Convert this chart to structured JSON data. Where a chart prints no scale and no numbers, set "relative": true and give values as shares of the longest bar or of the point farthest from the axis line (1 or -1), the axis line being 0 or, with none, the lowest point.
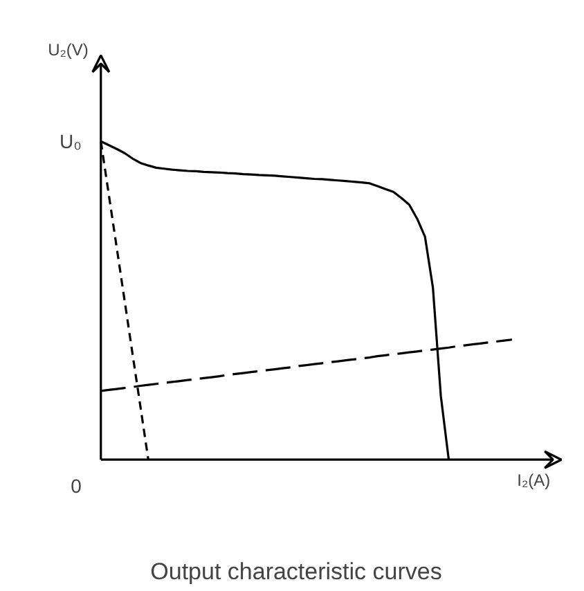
{
  "chart_data": {
    "type": "line",
    "title": "Output characteristic curves",
    "xlabel": "I₂(A)",
    "ylabel": "U₂(V)",
    "relative": true,
    "grid": false,
    "marker": "none",
    "annotations": [
      "U₀",
      "0"
    ],
    "categories": [
      null,
      null,
      null,
      null,
      null,
      null,
      null,
      null,
      null,
      null,
      null,
      null,
      null,
      null,
      null,
      null,
      null,
      null,
      null,
      null,
      null,
      null,
      null,
      null,
      null,
      null,
      null,
      null,
      null,
      null,
      null,
      null,
      null,
      null,
      null,
      null,
      null,
      null,
      null,
      null,
      null,
      null,
      null,
      null,
      null,
      null,
      null,
      null,
      null,
      null,
      null,
      null,
      null
    ],
    "series": [
      {
        "color": "#000000",
        "line_style": "solid",
        "values": [
          1,
          0.988,
          0.976,
          0.963,
          0.946,
          0.932,
          0.924,
          0.917,
          0.914,
          0.911,
          0.909,
          0.907,
          0.906,
          0.904,
          0.903,
          0.902,
          0.9,
          0.899,
          0.897,
          0.896,
          0.894,
          0.893,
          0.892,
          0.89,
          0.888,
          0.886,
          0.884,
          0.882,
          0.881,
          0.879,
          0.877,
          0.875,
          0.873,
          0.871,
          0.868,
          0.859,
          0.85,
          0.841,
          0.822,
          0.801,
          0.757,
          0.7,
          0.54,
          0.2,
          0,
          null,
          null,
          null,
          null,
          null,
          null,
          null,
          null
        ]
      },
      {
        "color": "#000000",
        "line_style": "dashed",
        "values": [
          1,
          0.833,
          0.667,
          0.5,
          0.333,
          0.167,
          0,
          null,
          null,
          null,
          null,
          null,
          null,
          null,
          null,
          null,
          null,
          null,
          null,
          null,
          null,
          null,
          null,
          null,
          null,
          null,
          null,
          null,
          null,
          null,
          null,
          null,
          null,
          null,
          null,
          null,
          null,
          null,
          null,
          null,
          null,
          null,
          null,
          null,
          null,
          null,
          null,
          null,
          null,
          null,
          null,
          null,
          null
        ]
      },
      {
        "color": "#000000",
        "line_style": "dashed",
        "values": [
          0.216,
          0.219,
          0.222,
          0.225,
          0.228,
          0.232,
          0.235,
          0.238,
          0.241,
          0.244,
          0.247,
          0.25,
          0.253,
          0.256,
          0.259,
          0.262,
          0.266,
          0.269,
          0.272,
          0.275,
          0.278,
          0.281,
          0.284,
          0.287,
          0.29,
          0.294,
          0.297,
          0.3,
          0.303,
          0.306,
          0.309,
          0.312,
          0.315,
          0.318,
          0.321,
          0.325,
          0.328,
          0.331,
          0.334,
          0.337,
          0.34,
          0.343,
          0.346,
          0.349,
          0.352,
          0.356,
          0.359,
          0.362,
          0.365,
          0.368,
          0.371,
          0.374,
          0.377
        ]
      }
    ]
  }
}
